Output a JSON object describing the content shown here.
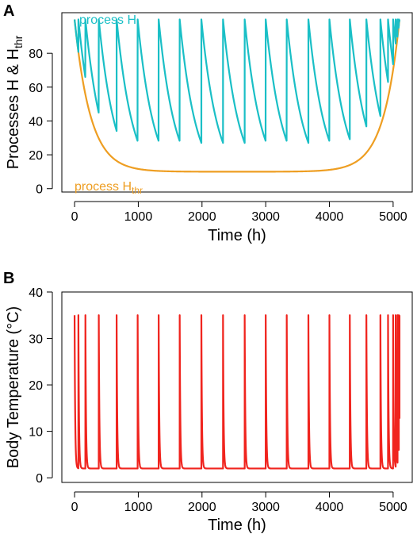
{
  "chart_data": [
    {
      "panel": "A",
      "type": "line",
      "xlabel": "Time (h)",
      "ylabel_main": "Processes H & H",
      "ylabel_sub": "thr",
      "xlim": [
        -200,
        5300
      ],
      "ylim": [
        -2,
        104
      ],
      "x_ticks": [
        0,
        1000,
        2000,
        3000,
        4000,
        5000
      ],
      "y_ticks": [
        0,
        20,
        40,
        60,
        80
      ],
      "cycle_starts": [
        0,
        60,
        170,
        380,
        660,
        990,
        1320,
        1650,
        1990,
        2330,
        2670,
        3000,
        3330,
        3670,
        4000,
        4320,
        4580,
        4800,
        4920,
        5000,
        5040,
        5070,
        5090
      ],
      "threshold": {
        "base": 10,
        "amplitude": 90,
        "tau": 250,
        "t_end": 5100,
        "t_peak": 5020
      },
      "h_decay_tau": 260,
      "h_max": 100,
      "series": [
        {
          "name": "process H",
          "name_sub": "",
          "color": "#1ABFC6"
        },
        {
          "name": "process H",
          "name_sub": "thr",
          "color": "#EE9E22"
        }
      ]
    },
    {
      "panel": "B",
      "type": "line",
      "xlabel": "Time (h)",
      "ylabel": "Body Temperature (°C)",
      "xlim": [
        -200,
        5300
      ],
      "ylim": [
        -1,
        40
      ],
      "x_ticks": [
        0,
        1000,
        2000,
        3000,
        4000,
        5000
      ],
      "y_ticks": [
        0,
        10,
        20,
        30,
        40
      ],
      "t_high": 35,
      "t_low": 2,
      "t_decay_tau": 9,
      "series": [
        {
          "name": "",
          "color": "#F0241E"
        }
      ]
    }
  ]
}
